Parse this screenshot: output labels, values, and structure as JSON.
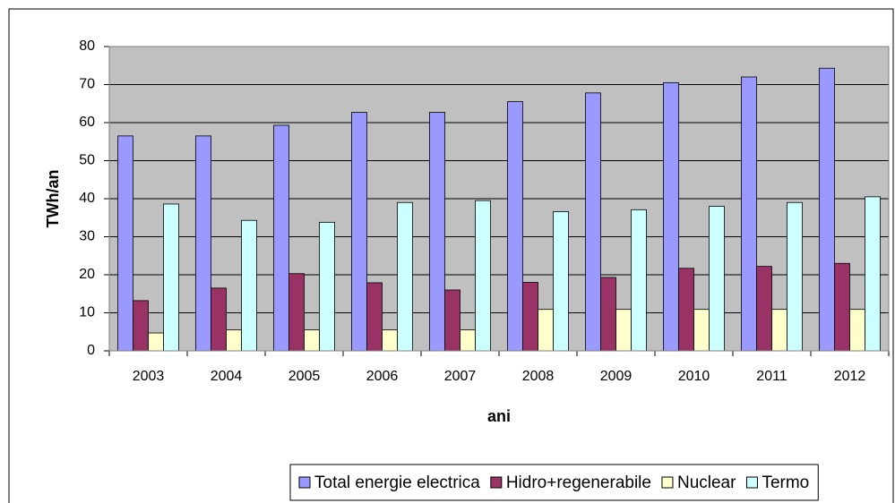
{
  "chart_data": {
    "type": "bar",
    "x_label": "ani",
    "y_label": "TWh/an",
    "categories": [
      "2003",
      "2004",
      "2005",
      "2006",
      "2007",
      "2008",
      "2009",
      "2010",
      "2011",
      "2012"
    ],
    "series": [
      {
        "name": "Total energie electrica",
        "color": "#9999ff",
        "values": [
          56.5,
          56.5,
          59.3,
          62.7,
          62.7,
          65.5,
          67.8,
          70.5,
          72,
          74.3
        ]
      },
      {
        "name": "Hidro+regenerabile",
        "color": "#993366",
        "values": [
          13.2,
          16.5,
          20.3,
          17.9,
          16,
          18,
          19.3,
          21.7,
          22.2,
          23
        ]
      },
      {
        "name": "Nuclear",
        "color": "#ffffcc",
        "values": [
          4.7,
          5.5,
          5.5,
          5.5,
          5.5,
          10.9,
          10.9,
          10.9,
          10.9,
          10.9
        ]
      },
      {
        "name": "Termo",
        "color": "#ccffff",
        "values": [
          38.6,
          34.3,
          33.8,
          39,
          39.5,
          36.6,
          37.1,
          38,
          39,
          40.5
        ]
      }
    ],
    "ylim": [
      0,
      80
    ],
    "yticks": [
      0,
      10,
      20,
      30,
      40,
      50,
      60,
      70,
      80
    ],
    "grid": true,
    "plot_background": "#c0c0c0",
    "legend": "bottom"
  }
}
